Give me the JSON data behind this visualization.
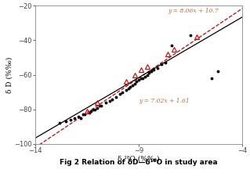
{
  "xlabel": "δ ¹⁸O (%‰)",
  "ylabel": "δ D (%‰)",
  "xlim": [
    -14,
    -4
  ],
  "ylim": [
    -100,
    -20
  ],
  "xticks": [
    -14,
    -9,
    -4
  ],
  "yticks": [
    -100,
    -80,
    -60,
    -40,
    -20
  ],
  "eq1_label": "y = 8.06x + 10.7",
  "eq1_color": "#CC6633",
  "eq2_label": "y = 7.02x + 1.61",
  "eq2_color": "#CC6633",
  "eq1_slope": 8.06,
  "eq1_intercept": 10.7,
  "eq2_slope": 7.02,
  "eq2_intercept": 1.61,
  "line1_color": "#CC0000",
  "line2_color": "#000000",
  "surface_color": "#CC0000",
  "caption": "Fig 2 Relation of δD—δ¹⁸O in study area",
  "surfacewater_points": [
    [
      -11.5,
      -81
    ],
    [
      -11.0,
      -76
    ],
    [
      -9.6,
      -64
    ],
    [
      -9.2,
      -60
    ],
    [
      -8.9,
      -57
    ],
    [
      -8.6,
      -55
    ],
    [
      -7.6,
      -48
    ],
    [
      -7.3,
      -45
    ],
    [
      -6.2,
      -38
    ]
  ],
  "groundwater_points": [
    [
      -12.8,
      -88
    ],
    [
      -12.5,
      -87
    ],
    [
      -12.3,
      -86
    ],
    [
      -12.1,
      -85
    ],
    [
      -11.9,
      -84
    ],
    [
      -11.8,
      -85
    ],
    [
      -11.7,
      -83
    ],
    [
      -11.6,
      -83
    ],
    [
      -11.4,
      -82
    ],
    [
      -11.3,
      -81
    ],
    [
      -11.2,
      -80
    ],
    [
      -11.1,
      -80
    ],
    [
      -11.0,
      -79
    ],
    [
      -10.9,
      -78
    ],
    [
      -10.8,
      -78
    ],
    [
      -10.6,
      -76
    ],
    [
      -10.4,
      -75
    ],
    [
      -10.3,
      -74
    ],
    [
      -10.1,
      -73
    ],
    [
      -9.9,
      -71
    ],
    [
      -9.8,
      -70
    ],
    [
      -9.6,
      -69
    ],
    [
      -9.5,
      -68
    ],
    [
      -9.4,
      -67
    ],
    [
      -9.3,
      -66
    ],
    [
      -9.2,
      -65
    ],
    [
      -9.1,
      -64
    ],
    [
      -9.0,
      -63
    ],
    [
      -8.9,
      -62
    ],
    [
      -8.8,
      -62
    ],
    [
      -8.7,
      -61
    ],
    [
      -8.6,
      -60
    ],
    [
      -8.5,
      -59
    ],
    [
      -8.4,
      -58
    ],
    [
      -8.3,
      -57
    ],
    [
      -8.1,
      -56
    ],
    [
      -7.9,
      -54
    ],
    [
      -7.7,
      -53
    ],
    [
      -7.4,
      -43
    ],
    [
      -6.5,
      -37
    ],
    [
      -5.5,
      -62
    ],
    [
      -5.2,
      -58
    ]
  ],
  "background_color": "#ffffff"
}
